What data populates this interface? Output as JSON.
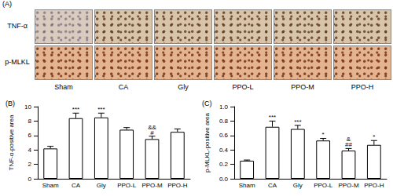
{
  "panel_a": {
    "title": "(A)",
    "rows": [
      "TNF-α",
      "p-MLKL"
    ],
    "columns": [
      "Sham",
      "CA",
      "Gly",
      "PPO-L",
      "PPO-M",
      "PPO-H"
    ]
  },
  "chart_data": [
    {
      "type": "bar",
      "title": "(B)",
      "y_label": "TNF-α-positive area",
      "categories": [
        "Sham",
        "CA",
        "Gly",
        "PPO-L",
        "PPO-M",
        "PPO-H"
      ],
      "values": [
        4.2,
        8.4,
        8.5,
        6.8,
        5.5,
        6.5
      ],
      "errors": [
        0.3,
        0.7,
        0.6,
        0.3,
        0.4,
        0.4
      ],
      "annotations": [
        null,
        "***",
        "***",
        null,
        "&&\n#",
        null
      ],
      "color": "#ffffff",
      "ylim": [
        0,
        10
      ],
      "yticks": [
        0,
        2,
        4,
        6,
        8,
        10
      ],
      "grid": false
    },
    {
      "type": "bar",
      "title": "(C)",
      "y_label": "p-MLKL-positive area",
      "categories": [
        "Sham",
        "CA",
        "Gly",
        "PPO-L",
        "PPO-M",
        "PPO-H"
      ],
      "values": [
        0.25,
        0.72,
        0.69,
        0.53,
        0.39,
        0.47
      ],
      "errors": [
        0.01,
        0.08,
        0.05,
        0.03,
        0.03,
        0.06
      ],
      "annotations": [
        null,
        "***",
        "***",
        "*",
        "&\n##",
        "*"
      ],
      "color": "#ffffff",
      "ylim": [
        0,
        1
      ],
      "yticks": [
        {
          "value": 0,
          "label": "0.0"
        },
        0.2,
        0.4,
        0.6,
        0.8,
        {
          "value": 1,
          "label": "1.0"
        }
      ],
      "grid": false
    }
  ]
}
